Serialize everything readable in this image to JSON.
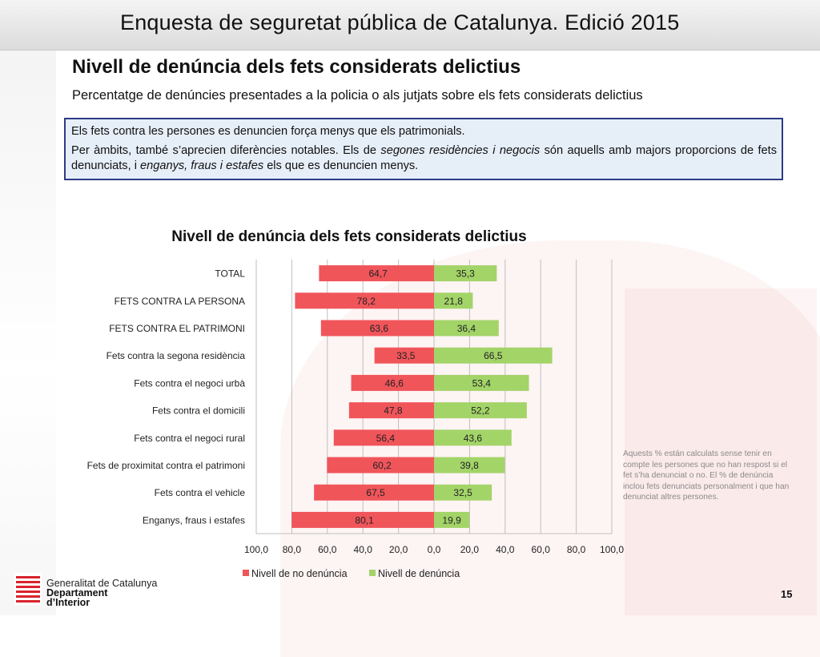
{
  "header": {
    "title": "Enquesta de seguretat pública de Catalunya. Edició 2015"
  },
  "section": {
    "title": "Nivell de denúncia dels fets considerats delictius",
    "subtitle": "Percentatge de denúncies presentades a la policia o als jutjats sobre els fets considerats delictius"
  },
  "summary": {
    "line1": "Els fets contra les persones es denuncien força menys que els patrimonials.",
    "line2_a": "Per àmbits, també s’aprecien diferències notables. Els de ",
    "line2_em1": "segones residències i negocis",
    "line2_b": " són aquells amb majors proporcions de fets denunciats, i ",
    "line2_em2": "enganys, fraus i estafes",
    "line2_c": " els que es denuncien menys."
  },
  "footnote": "Aquests % están calculats sense tenir en compte les persones que no han respost si el fet s’ha denunciat o no. El % de denúncia inclou fets denunciats personalment i que han denunciat altres persones.",
  "footer": {
    "org_line1": "Generalitat de Catalunya",
    "org_line2": "Departament",
    "org_line3": "d’Interior",
    "page_number": "15"
  },
  "colors": {
    "no_report": "#f0555a",
    "report": "#a3d468",
    "box_border": "#2e3b86",
    "box_fill": "#e6eef8"
  },
  "icons": {
    "logo": "generalitat-logo-icon"
  },
  "chart_data": {
    "type": "bar",
    "orientation": "horizontal-diverging",
    "title": "Nivell de denúncia dels fets considerats delictius",
    "categories": [
      "TOTAL",
      "FETS CONTRA LA PERSONA",
      "FETS CONTRA EL PATRIMONI",
      "Fets contra la segona residència",
      "Fets contra el negoci urbà",
      "Fets contra el domicili",
      "Fets contra el negoci rural",
      "Fets de proximitat contra el patrimoni",
      "Fets contra el vehicle",
      "Enganys, fraus i estafes"
    ],
    "series": [
      {
        "name": "Nivell de no denúncia",
        "color": "#f0555a",
        "values": [
          64.7,
          78.2,
          63.6,
          33.5,
          46.6,
          47.8,
          56.4,
          60.2,
          67.5,
          80.1
        ],
        "labels": [
          "64,7",
          "78,2",
          "63,6",
          "33,5",
          "46,6",
          "47,8",
          "56,4",
          "60,2",
          "67,5",
          "80,1"
        ]
      },
      {
        "name": "Nivell de denúncia",
        "color": "#a3d468",
        "values": [
          35.3,
          21.8,
          36.4,
          66.5,
          53.4,
          52.2,
          43.6,
          39.8,
          32.5,
          19.9
        ],
        "labels": [
          "35,3",
          "21,8",
          "36,4",
          "66,5",
          "53,4",
          "52,2",
          "43,6",
          "39,8",
          "32,5",
          "19,9"
        ]
      }
    ],
    "xlim": [
      -100,
      100
    ],
    "x_ticks": [
      -100,
      -80,
      -60,
      -40,
      -20,
      0,
      20,
      40,
      60,
      80,
      100
    ],
    "x_tick_labels": [
      "100,0",
      "80,0",
      "60,0",
      "40,0",
      "20,0",
      "0,0",
      "20,0",
      "40,0",
      "60,0",
      "80,0",
      "100,0"
    ],
    "grid": "vertical",
    "legend_position": "bottom"
  }
}
